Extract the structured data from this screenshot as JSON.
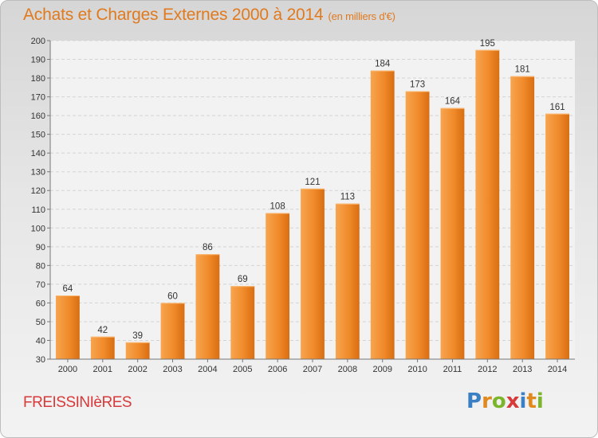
{
  "header": {
    "title": "Achats et Charges Externes 2000 à 2014",
    "unit": "(en milliers d'€)"
  },
  "footer": {
    "commune": "FREISSINIèRES",
    "brand_letters": [
      "P",
      "r",
      "o",
      "x",
      "i",
      "t",
      "i"
    ],
    "brand_colors": [
      "#3b7fc4",
      "#e08a1e",
      "#7bb52a",
      "#d63a3a",
      "#3b7fc4",
      "#e08a1e",
      "#7bb52a"
    ]
  },
  "chart_data": {
    "type": "bar",
    "categories": [
      "2000",
      "2001",
      "2002",
      "2003",
      "2004",
      "2005",
      "2006",
      "2007",
      "2008",
      "2009",
      "2010",
      "2011",
      "2012",
      "2013",
      "2014"
    ],
    "values": [
      64,
      42,
      39,
      60,
      86,
      69,
      108,
      121,
      113,
      184,
      173,
      164,
      195,
      181,
      161
    ],
    "ylim": [
      30,
      200
    ],
    "ytick_step": 10,
    "grid": true,
    "bar_color": "#f08a2a"
  }
}
